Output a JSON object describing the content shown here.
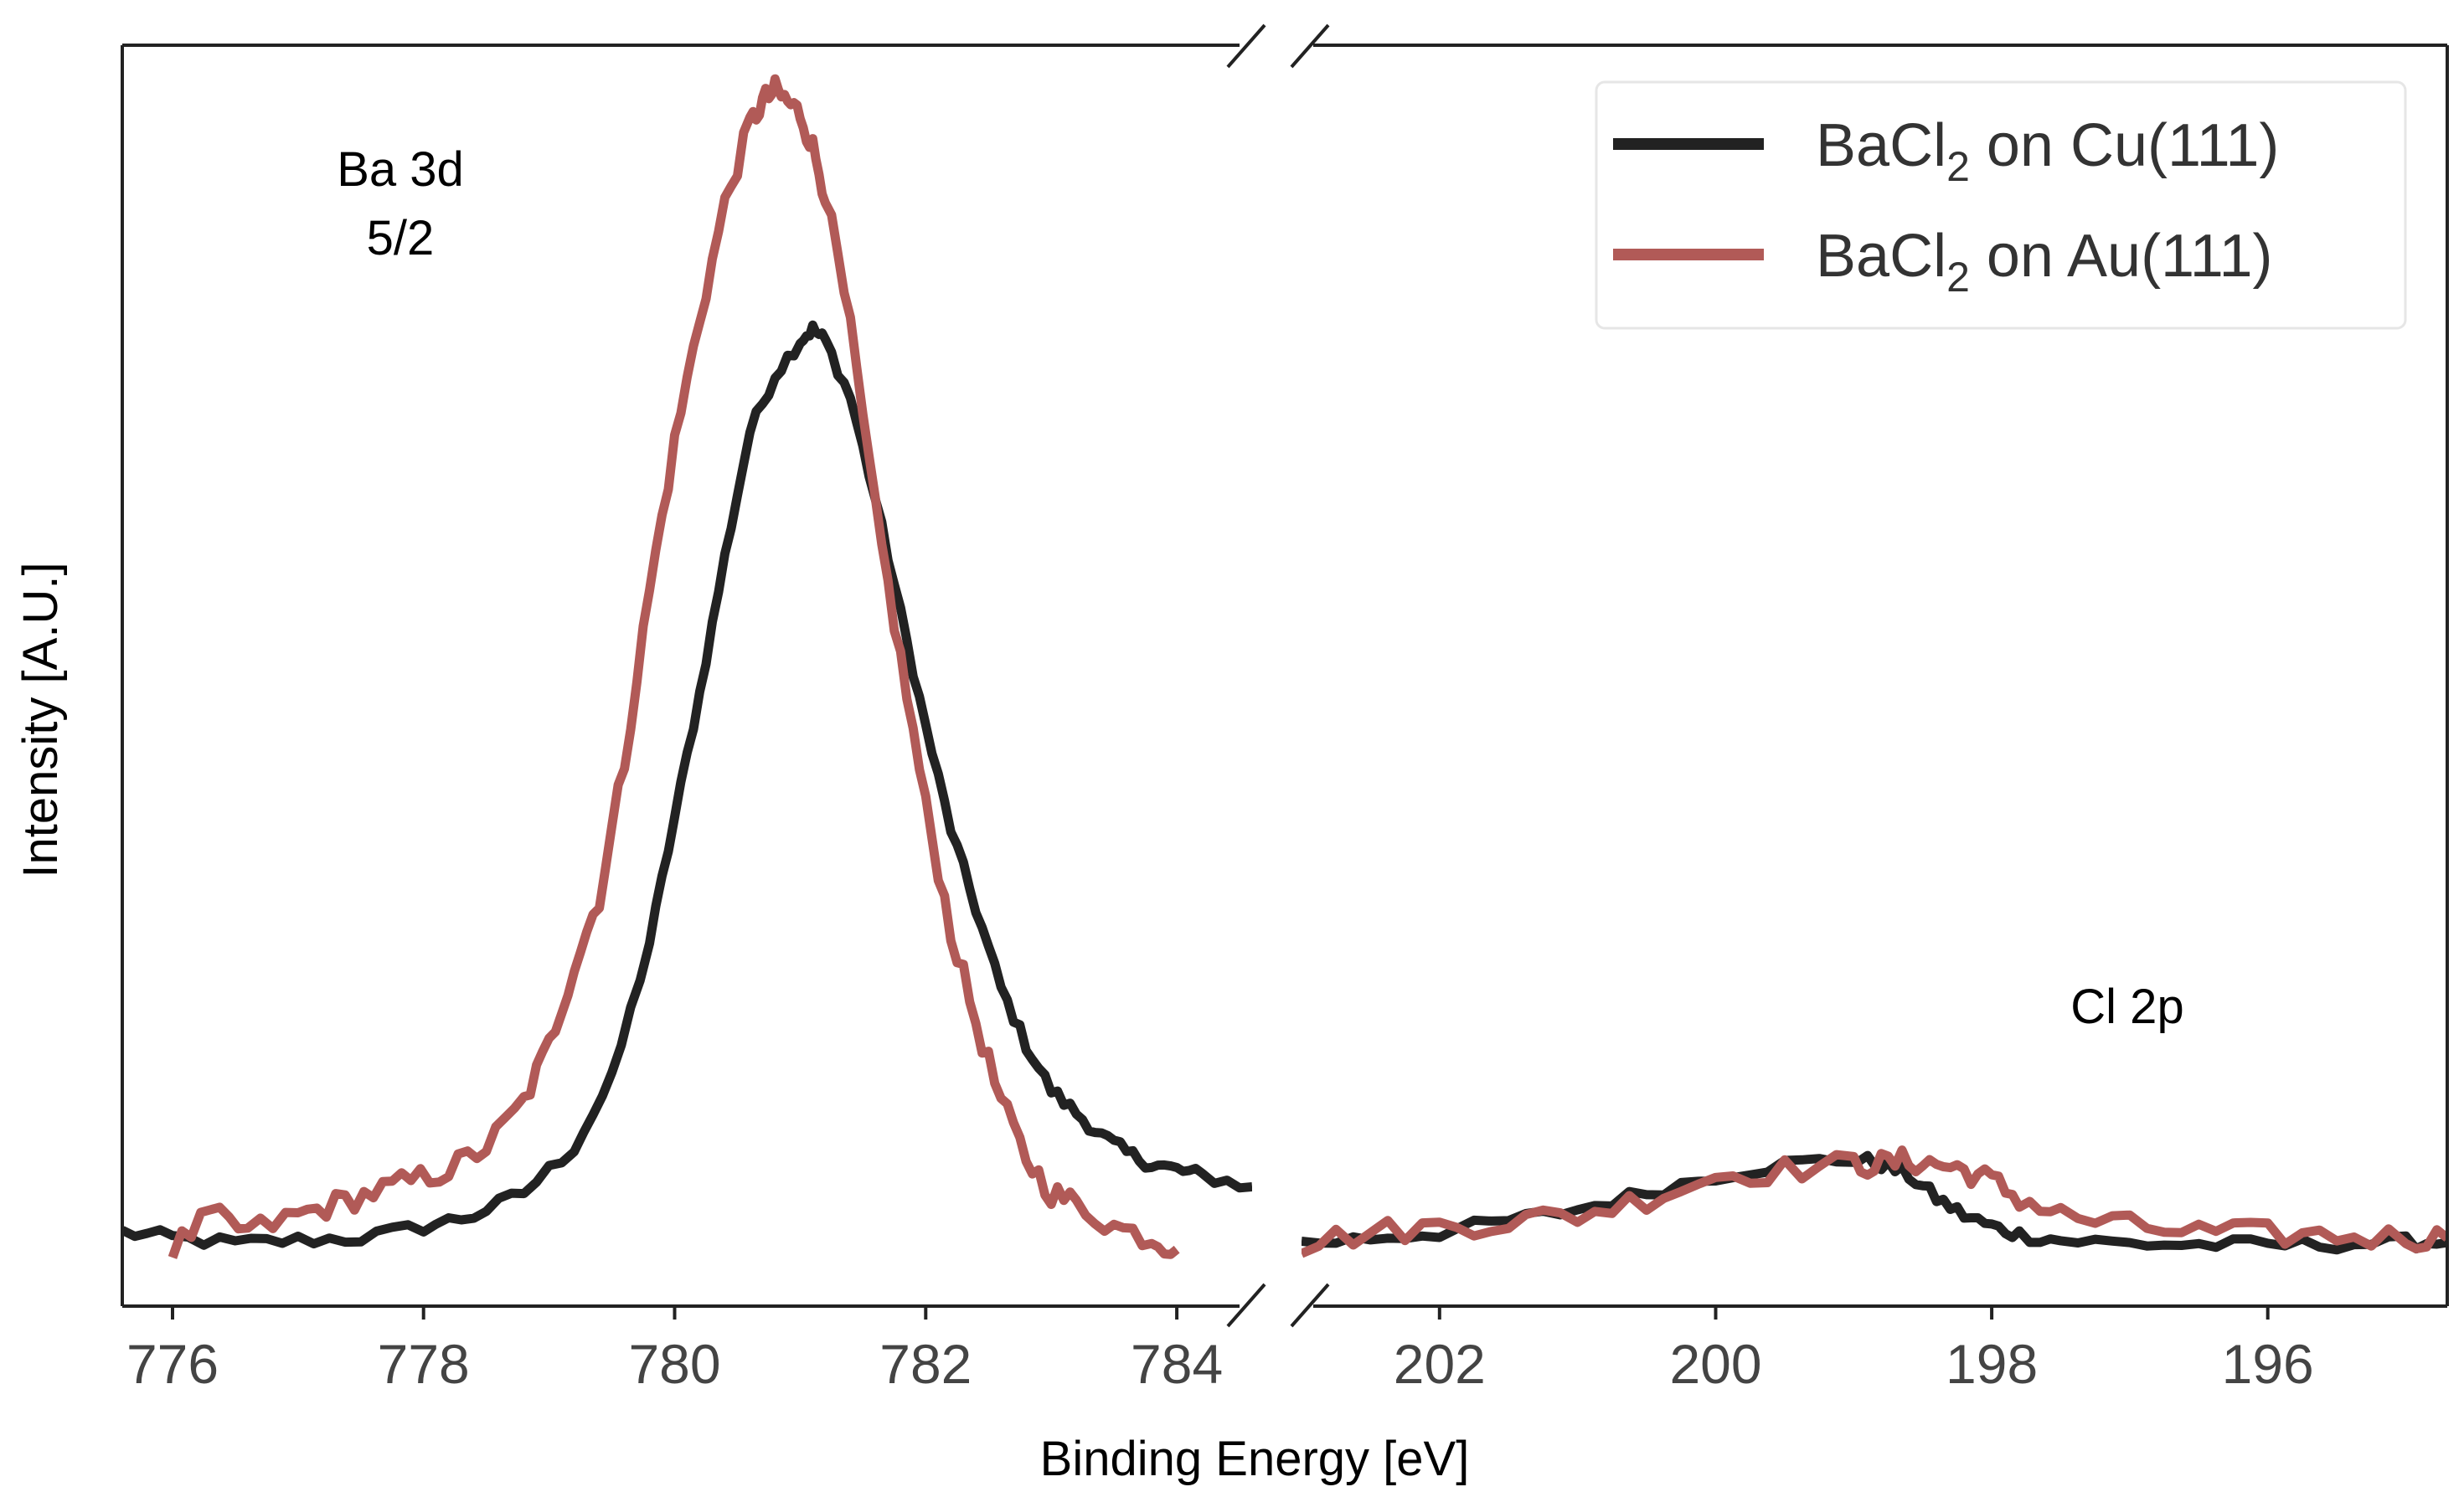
{
  "chart_data": {
    "type": "line",
    "xlabel": "Binding Energy [eV]",
    "ylabel": "Intensity [A.U.]",
    "broken_x_axis": true,
    "grid": false,
    "legend_position": "top-right",
    "left_panel": {
      "xlim": [
        775.6,
        784.6
      ],
      "ticks": [
        776,
        778,
        780,
        782,
        784
      ],
      "tick_labels": [
        "776",
        "778",
        "780",
        "782",
        "784"
      ],
      "annotation": [
        "Ba 3d",
        "5/2"
      ],
      "annotation_position": [
        777.7,
        0.9
      ]
    },
    "right_panel": {
      "xlim": [
        203.0,
        194.7
      ],
      "reversed": true,
      "ticks": [
        202,
        200,
        198,
        196
      ],
      "tick_labels": [
        "202",
        "200",
        "198",
        "196"
      ],
      "annotation": [
        "Cl 2p"
      ],
      "annotation_position": [
        197.0,
        0.19
      ]
    },
    "ylim": [
      -0.06,
      1.05
    ],
    "series": [
      {
        "name_main": "BaCl",
        "name_sub": "2",
        "name_tail": " on Cu(111)",
        "color": "#222222",
        "left": {
          "x": [
            775.6,
            776.0,
            776.5,
            777.0,
            777.5,
            778.0,
            778.4,
            778.8,
            779.2,
            779.5,
            779.8,
            780.0,
            780.2,
            780.4,
            780.6,
            780.8,
            781.0,
            781.1,
            781.2,
            781.4,
            781.6,
            781.8,
            782.0,
            782.2,
            782.4,
            782.6,
            782.8,
            783.0,
            783.2,
            783.4,
            783.6,
            783.8,
            784.0,
            784.2,
            784.6
          ],
          "y": [
            0.005,
            0.0,
            -0.005,
            -0.002,
            0.0,
            0.01,
            0.02,
            0.04,
            0.08,
            0.14,
            0.26,
            0.37,
            0.48,
            0.6,
            0.71,
            0.76,
            0.79,
            0.8,
            0.79,
            0.74,
            0.65,
            0.55,
            0.45,
            0.36,
            0.29,
            0.22,
            0.17,
            0.13,
            0.11,
            0.09,
            0.075,
            0.065,
            0.06,
            0.055,
            0.045
          ]
        },
        "right": {
          "x": [
            203.0,
            202.5,
            202.0,
            201.5,
            201.0,
            200.5,
            200.0,
            199.5,
            199.0,
            198.8,
            198.6,
            198.4,
            198.2,
            198.0,
            197.8,
            197.5,
            197.0,
            196.5,
            196.0,
            195.5,
            195.0,
            194.7
          ],
          "y": [
            -0.005,
            0.0,
            0.005,
            0.015,
            0.025,
            0.04,
            0.055,
            0.065,
            0.07,
            0.065,
            0.055,
            0.035,
            0.02,
            0.01,
            0.003,
            -0.002,
            -0.005,
            -0.006,
            -0.006,
            -0.005,
            -0.004,
            -0.004
          ]
        }
      },
      {
        "name_main": "BaCl",
        "name_sub": "2",
        "name_tail": " on Au(111)",
        "color": "#b15a57",
        "left": {
          "x": [
            776.0,
            776.3,
            776.6,
            777.0,
            777.3,
            777.6,
            777.9,
            778.2,
            778.5,
            778.8,
            779.0,
            779.2,
            779.4,
            779.6,
            779.8,
            780.0,
            780.2,
            780.4,
            780.6,
            780.7,
            780.8,
            780.9,
            781.0,
            781.1,
            781.2,
            781.4,
            781.6,
            781.8,
            782.0,
            782.2,
            782.4,
            782.6,
            782.8,
            783.0,
            783.2,
            783.5,
            783.8,
            784.0
          ],
          "y": [
            -0.01,
            0.02,
            0.005,
            0.02,
            0.03,
            0.04,
            0.05,
            0.06,
            0.08,
            0.12,
            0.17,
            0.24,
            0.3,
            0.42,
            0.57,
            0.7,
            0.81,
            0.91,
            0.98,
            1.0,
            1.01,
            1.0,
            0.99,
            0.96,
            0.92,
            0.8,
            0.64,
            0.51,
            0.38,
            0.27,
            0.19,
            0.12,
            0.07,
            0.04,
            0.03,
            0.01,
            0.0,
            -0.01
          ]
        },
        "right": {
          "x": [
            203.0,
            202.5,
            202.0,
            201.5,
            201.0,
            200.5,
            200.0,
            199.5,
            199.0,
            198.8,
            198.6,
            198.4,
            198.2,
            198.0,
            197.8,
            197.5,
            197.0,
            196.5,
            196.0,
            195.5,
            195.0,
            194.7
          ],
          "y": [
            -0.005,
            0.005,
            0.01,
            0.015,
            0.02,
            0.035,
            0.055,
            0.06,
            0.065,
            0.065,
            0.068,
            0.065,
            0.06,
            0.05,
            0.035,
            0.02,
            0.01,
            0.005,
            0.003,
            0.002,
            0.0,
            0.0
          ]
        }
      }
    ]
  }
}
